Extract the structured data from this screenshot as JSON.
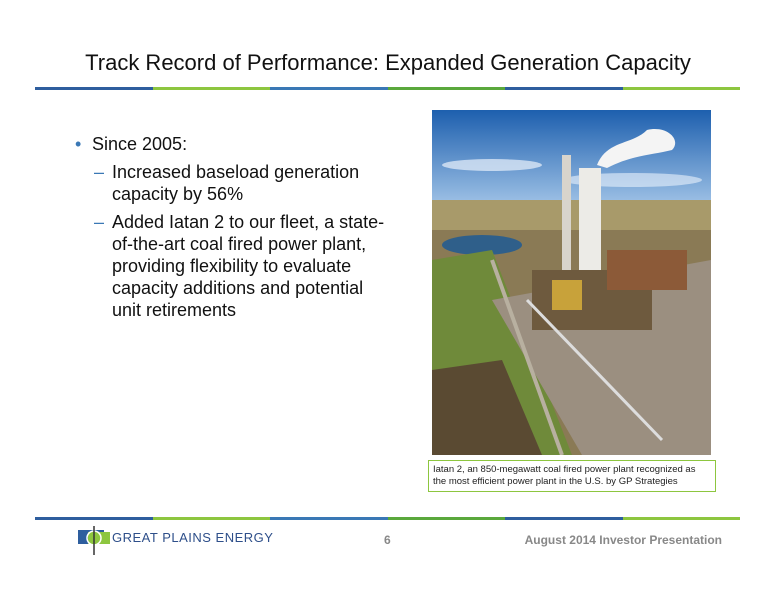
{
  "header": {
    "title": "Track Record of Performance: Expanded Generation Capacity"
  },
  "bullets": [
    {
      "text": "Since 2005:",
      "subitems": [
        "Increased baseload generation capacity by 56%",
        "Added Iatan 2 to our fleet, a state-of-the-art coal fired power plant, providing flexibility to evaluate capacity additions and potential unit retirements"
      ]
    }
  ],
  "image": {
    "caption": "Iatan 2, an 850-megawatt coal fired power plant recognized as the most efficient power plant in the U.S. by GP Strategies"
  },
  "footer": {
    "logo": "GREAT PLAINS ENERGY",
    "page": "6",
    "text": "August 2014 Investor Presentation"
  }
}
